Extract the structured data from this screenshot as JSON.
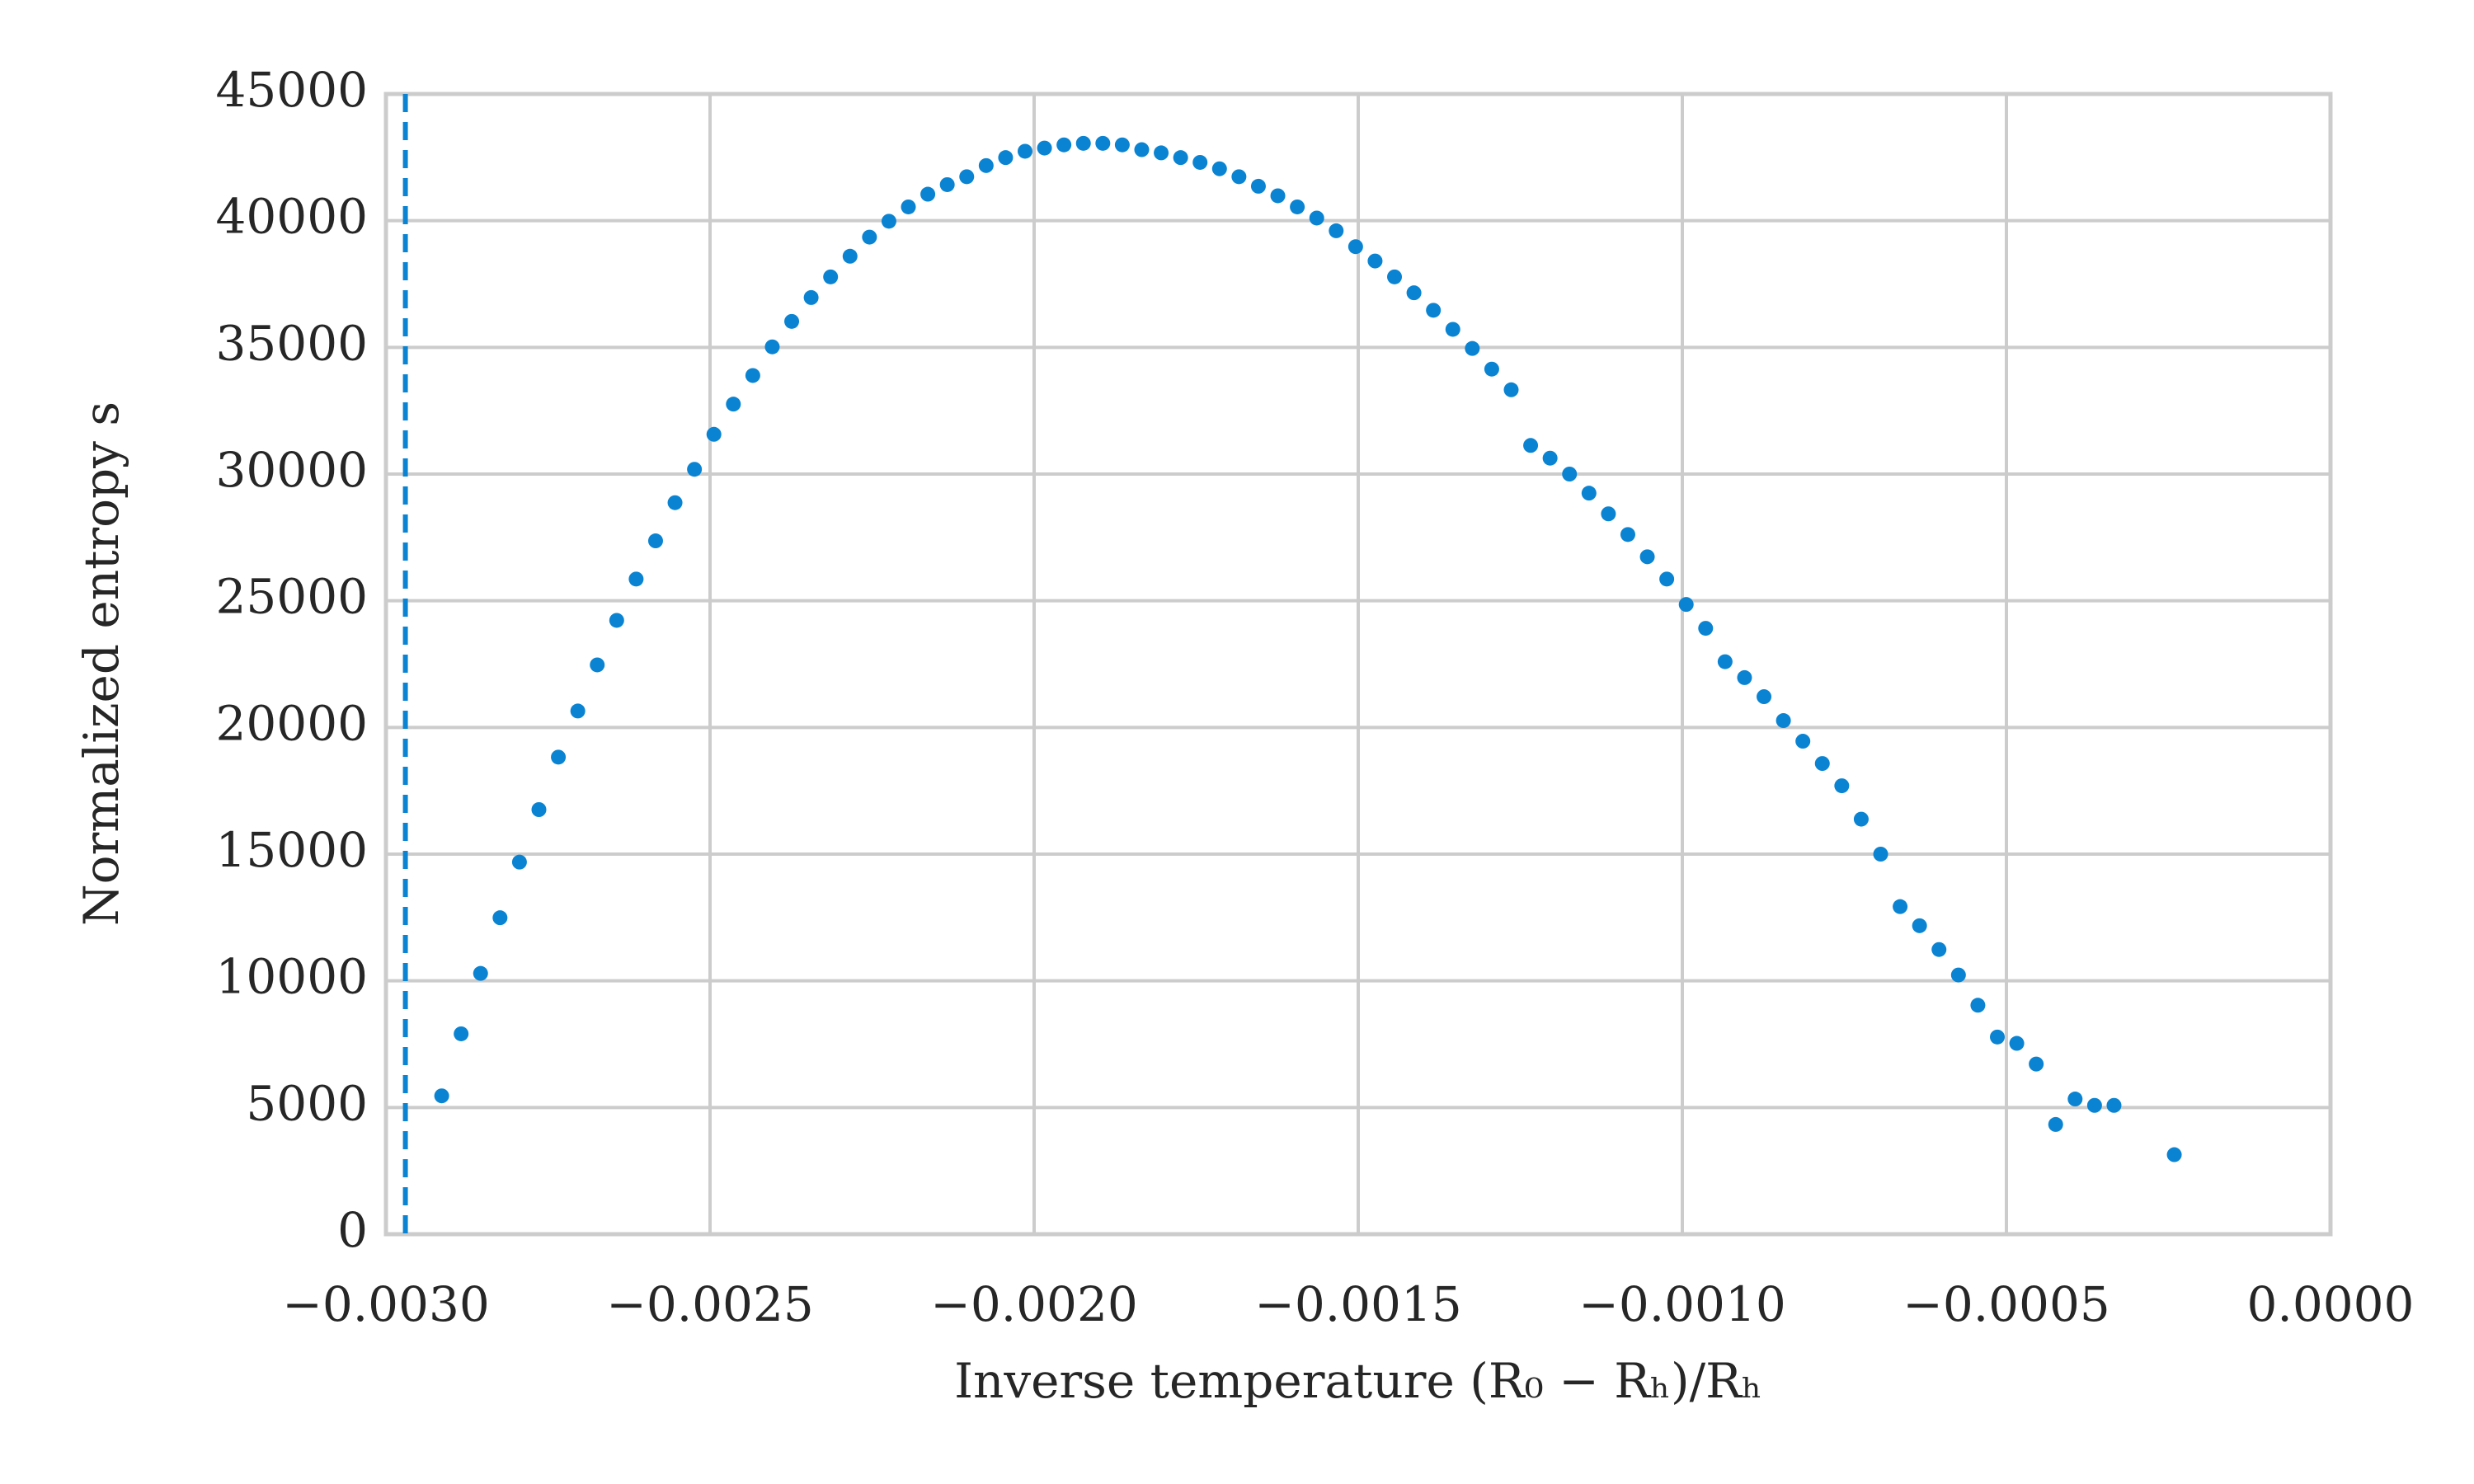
{
  "chart_data": {
    "type": "scatter",
    "xlabel": "Inverse temperature (R₀ − Rₕ)/Rₕ",
    "ylabel": "Normalized entropy s",
    "color": "#0a84d2",
    "grid": true,
    "vline": {
      "x": -0.00297,
      "color": "#0a84d2",
      "style": "dashed"
    },
    "xlim": [
      -0.003,
      0
    ],
    "ylim": [
      0,
      45000
    ],
    "xticks": [
      {
        "value": -0.003,
        "label": "−0.0030"
      },
      {
        "value": -0.0025,
        "label": "−0.0025"
      },
      {
        "value": -0.002,
        "label": "−0.0020"
      },
      {
        "value": -0.0015,
        "label": "−0.0015"
      },
      {
        "value": -0.001,
        "label": "−0.0010"
      },
      {
        "value": -0.0005,
        "label": "−0.0005"
      },
      {
        "value": 0,
        "label": "0.0000"
      }
    ],
    "yticks": [
      0,
      5000,
      10000,
      15000,
      20000,
      25000,
      30000,
      35000,
      40000,
      45000
    ],
    "x": [
      -0.002914,
      -0.002884,
      -0.002854,
      -0.002824,
      -0.002794,
      -0.002764,
      -0.002734,
      -0.002704,
      -0.002674,
      -0.002644,
      -0.002614,
      -0.002584,
      -0.002554,
      -0.002524,
      -0.002494,
      -0.002464,
      -0.002434,
      -0.002404,
      -0.002374,
      -0.002344,
      -0.002314,
      -0.002284,
      -0.002254,
      -0.002224,
      -0.002194,
      -0.002164,
      -0.002134,
      -0.002104,
      -0.002074,
      -0.002044,
      -0.002014,
      -0.001984,
      -0.001954,
      -0.001924,
      -0.001894,
      -0.001864,
      -0.001834,
      -0.001804,
      -0.001774,
      -0.001744,
      -0.001714,
      -0.001684,
      -0.001654,
      -0.001624,
      -0.001594,
      -0.001564,
      -0.001534,
      -0.001504,
      -0.001474,
      -0.001444,
      -0.001414,
      -0.001384,
      -0.001354,
      -0.001324,
      -0.001294,
      -0.001264,
      -0.001234,
      -0.001204,
      -0.001174,
      -0.001144,
      -0.001114,
      -0.001084,
      -0.001054,
      -0.001024,
      -0.000994,
      -0.000964,
      -0.000934,
      -0.000904,
      -0.000874,
      -0.000844,
      -0.000814,
      -0.000784,
      -0.000754,
      -0.000724,
      -0.000694,
      -0.000664,
      -0.000634,
      -0.000604,
      -0.000574,
      -0.000544,
      -0.000514,
      -0.000484,
      -0.000454,
      -0.000424,
      -0.000394,
      -0.000364,
      -0.000334,
      -0.000241
    ],
    "values": [
      5460,
      7908,
      10293,
      12489,
      14686,
      16757,
      18828,
      20648,
      22468,
      24225,
      25857,
      27363,
      28870,
      30188,
      31568,
      32761,
      33890,
      35020,
      36024,
      36966,
      37782,
      38597,
      39351,
      39978,
      40543,
      41045,
      41422,
      41735,
      42175,
      42489,
      42740,
      42865,
      42991,
      43053,
      43053,
      42991,
      42802,
      42677,
      42489,
      42300,
      42049,
      41735,
      41359,
      40982,
      40543,
      40104,
      39602,
      38974,
      38409,
      37782,
      37154,
      36464,
      35711,
      34957,
      34141,
      33326,
      31129,
      30627,
      30000,
      29246,
      28430,
      27614,
      26736,
      25857,
      24853,
      23912,
      22594,
      21966,
      21213,
      20271,
      19456,
      18577,
      17698,
      16380,
      15000,
      12929,
      12175,
      11234,
      10230,
      9037,
      7782,
      7531,
      6715,
      4330,
      5335,
      5084,
      5084,
      3138
    ]
  }
}
